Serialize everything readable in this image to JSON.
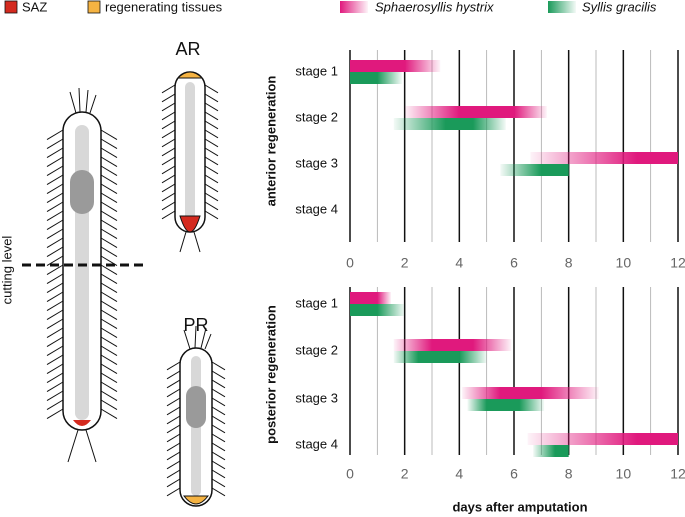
{
  "figure": {
    "legend": [
      {
        "label": "SAZ",
        "color": "#d42a1f"
      },
      {
        "label": "regenerating tissues",
        "color": "#f5b342"
      }
    ],
    "cut_label": "cutting level",
    "worm_labels": [
      "AR",
      "PR"
    ]
  },
  "chart_data": {
    "type": "range-bar",
    "xlabel": "days after amputation",
    "xlim": [
      0,
      12
    ],
    "xticks": [
      0,
      2,
      4,
      6,
      8,
      10,
      12
    ],
    "minor_xticks": [
      1,
      3,
      5,
      7,
      9,
      11
    ],
    "series": [
      {
        "name": "Sphaerosyllis hystrix",
        "color": "#e0197d"
      },
      {
        "name": "Syllis gracilis",
        "color": "#1a9a5a"
      }
    ],
    "panels": [
      {
        "ylabel": "anterior regeneration",
        "categories": [
          "stage 1",
          "stage 2",
          "stage 3",
          "stage 4"
        ],
        "values": [
          [
            [
              0,
              0,
              2,
              3.3
            ],
            [
              2,
              4,
              6,
              7.2
            ],
            [
              6.6,
              10.5,
              12,
              12
            ],
            null
          ],
          [
            [
              0,
              0,
              1,
              1.9
            ],
            [
              1.6,
              3.5,
              4.5,
              5.7
            ],
            [
              5.5,
              7,
              8,
              8
            ],
            null
          ]
        ]
      },
      {
        "ylabel": "posterior regeneration",
        "categories": [
          "stage 1",
          "stage 2",
          "stage 3",
          "stage 4"
        ],
        "values": [
          [
            [
              0,
              0,
              1,
              1.5
            ],
            [
              1.6,
              3,
              4.5,
              5.9
            ],
            [
              4.1,
              5.5,
              7,
              9.1
            ],
            [
              6.5,
              10.5,
              12,
              12
            ]
          ],
          [
            [
              0,
              0,
              1,
              2
            ],
            [
              1.6,
              2.5,
              4,
              5
            ],
            [
              4.3,
              5,
              6.2,
              7.1
            ],
            [
              6.7,
              7.5,
              8,
              8
            ]
          ]
        ]
      }
    ]
  }
}
